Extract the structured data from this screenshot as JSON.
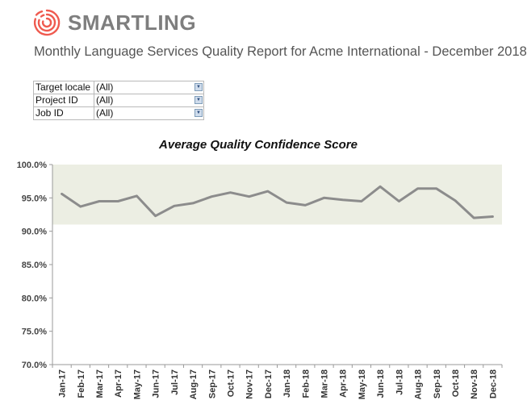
{
  "brand": {
    "name": "SMARTLING",
    "logo_icon": "fingerprint-spiral-logo",
    "logo_color": "#ef5a4f"
  },
  "report_title": "Monthly Language Services Quality Report for Acme International - December 2018",
  "filters": [
    {
      "label": "Target locale",
      "value": "(All)"
    },
    {
      "label": "Project ID",
      "value": "(All)"
    },
    {
      "label": "Job ID",
      "value": "(All)"
    }
  ],
  "chart_data": {
    "type": "line",
    "title": "Average Quality Confidence Score",
    "categories": [
      "Jan-17",
      "Feb-17",
      "Mar-17",
      "Apr-17",
      "May-17",
      "Jun-17",
      "Jul-17",
      "Aug-17",
      "Sep-17",
      "Oct-17",
      "Nov-17",
      "Dec-17",
      "Jan-18",
      "Feb-18",
      "Mar-18",
      "Apr-18",
      "May-18",
      "Jun-18",
      "Jul-18",
      "Aug-18",
      "Sep-18",
      "Oct-18",
      "Nov-18",
      "Dec-18"
    ],
    "series": [
      {
        "name": "Average Quality Confidence Score",
        "values": [
          95.6,
          93.7,
          94.5,
          94.5,
          95.3,
          92.3,
          93.8,
          94.2,
          95.2,
          95.8,
          95.2,
          96.0,
          94.3,
          93.9,
          95.0,
          94.7,
          94.5,
          96.7,
          94.5,
          96.4,
          96.4,
          94.6,
          92.0,
          92.2
        ],
        "color": "#8c8c8c"
      }
    ],
    "band": {
      "from": 91.0,
      "to": 100.0,
      "color": "#eceee3"
    },
    "ylim": [
      70,
      100
    ],
    "yticks": [
      70,
      75,
      80,
      85,
      90,
      95,
      100
    ],
    "ytick_labels": [
      "70.0%",
      "75.0%",
      "80.0%",
      "85.0%",
      "90.0%",
      "95.0%",
      "100.0%"
    ],
    "xlabel": "",
    "ylabel": "",
    "grid": false,
    "legend": "none"
  }
}
